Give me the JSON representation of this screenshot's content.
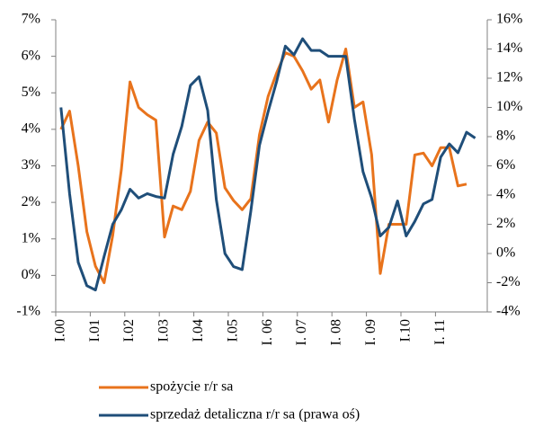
{
  "chart_data": {
    "type": "line",
    "categories": [
      "I.00",
      null,
      null,
      null,
      "I.01",
      null,
      null,
      null,
      "I.02",
      null,
      null,
      null,
      "I.03",
      null,
      null,
      null,
      "I.04",
      null,
      null,
      null,
      "I.05",
      null,
      null,
      null,
      "I. 06",
      null,
      null,
      null,
      "I. 07",
      null,
      null,
      null,
      "I. 08",
      null,
      null,
      null,
      "I. 09",
      null,
      null,
      null,
      "I.10",
      null,
      null,
      null,
      "I. 11",
      null,
      null,
      null,
      null,
      null
    ],
    "series": [
      {
        "name": "spożycie r/r sa",
        "color": "#e8731c",
        "values": [
          4.0,
          4.5,
          3.0,
          1.2,
          0.25,
          -0.2,
          1.1,
          2.9,
          5.3,
          4.6,
          4.4,
          4.25,
          1.05,
          1.9,
          1.8,
          2.3,
          3.7,
          4.2,
          3.9,
          2.4,
          2.05,
          1.8,
          2.1,
          3.85,
          4.9,
          5.55,
          6.1,
          6.0,
          5.6,
          5.1,
          5.35,
          4.2,
          5.35,
          6.2,
          4.6,
          4.75,
          3.3,
          0.05,
          1.4,
          1.4,
          1.4,
          3.3,
          3.35,
          3.0,
          3.5,
          3.5,
          2.45,
          2.5,
          null,
          null
        ]
      },
      {
        "name": "sprzedaż detaliczna r/r sa (prawa oś)",
        "color": "#1f4e79",
        "axis": "y2",
        "values": [
          10.0,
          4.1,
          -0.6,
          -2.2,
          -2.5,
          -0.2,
          2.0,
          3.0,
          4.4,
          3.8,
          4.1,
          3.9,
          3.8,
          6.8,
          8.7,
          11.5,
          12.1,
          9.8,
          3.7,
          0.0,
          -0.9,
          -1.1,
          2.9,
          7.4,
          9.7,
          11.8,
          14.2,
          13.6,
          14.7,
          13.9,
          13.9,
          13.5,
          13.5,
          13.5,
          9.2,
          5.6,
          3.8,
          1.2,
          1.8,
          3.6,
          1.2,
          2.2,
          3.4,
          3.7,
          6.6,
          7.5,
          6.9,
          8.3,
          7.9,
          null
        ]
      }
    ],
    "ylim": [
      -1,
      7
    ],
    "yticks": [
      {
        "value": -1,
        "label": "-1%"
      },
      {
        "value": 0,
        "label": "0%"
      },
      {
        "value": 1,
        "label": "1%"
      },
      {
        "value": 2,
        "label": "2%"
      },
      {
        "value": 3,
        "label": "3%"
      },
      {
        "value": 4,
        "label": "4%"
      },
      {
        "value": 5,
        "label": "5%"
      },
      {
        "value": 6,
        "label": "6%"
      },
      {
        "value": 7,
        "label": "7%"
      }
    ],
    "y2lim": [
      -4,
      16
    ],
    "y2ticks": [
      {
        "value": -4,
        "label": "-4%"
      },
      {
        "value": -2,
        "label": "-2%"
      },
      {
        "value": 0,
        "label": "0%"
      },
      {
        "value": 2,
        "label": "2%"
      },
      {
        "value": 4,
        "label": "4%"
      },
      {
        "value": 6,
        "label": "6%"
      },
      {
        "value": 8,
        "label": "8%"
      },
      {
        "value": 10,
        "label": "10%"
      },
      {
        "value": 12,
        "label": "12%"
      },
      {
        "value": 14,
        "label": "14%"
      },
      {
        "value": 16,
        "label": "16%"
      }
    ],
    "grid": false
  }
}
